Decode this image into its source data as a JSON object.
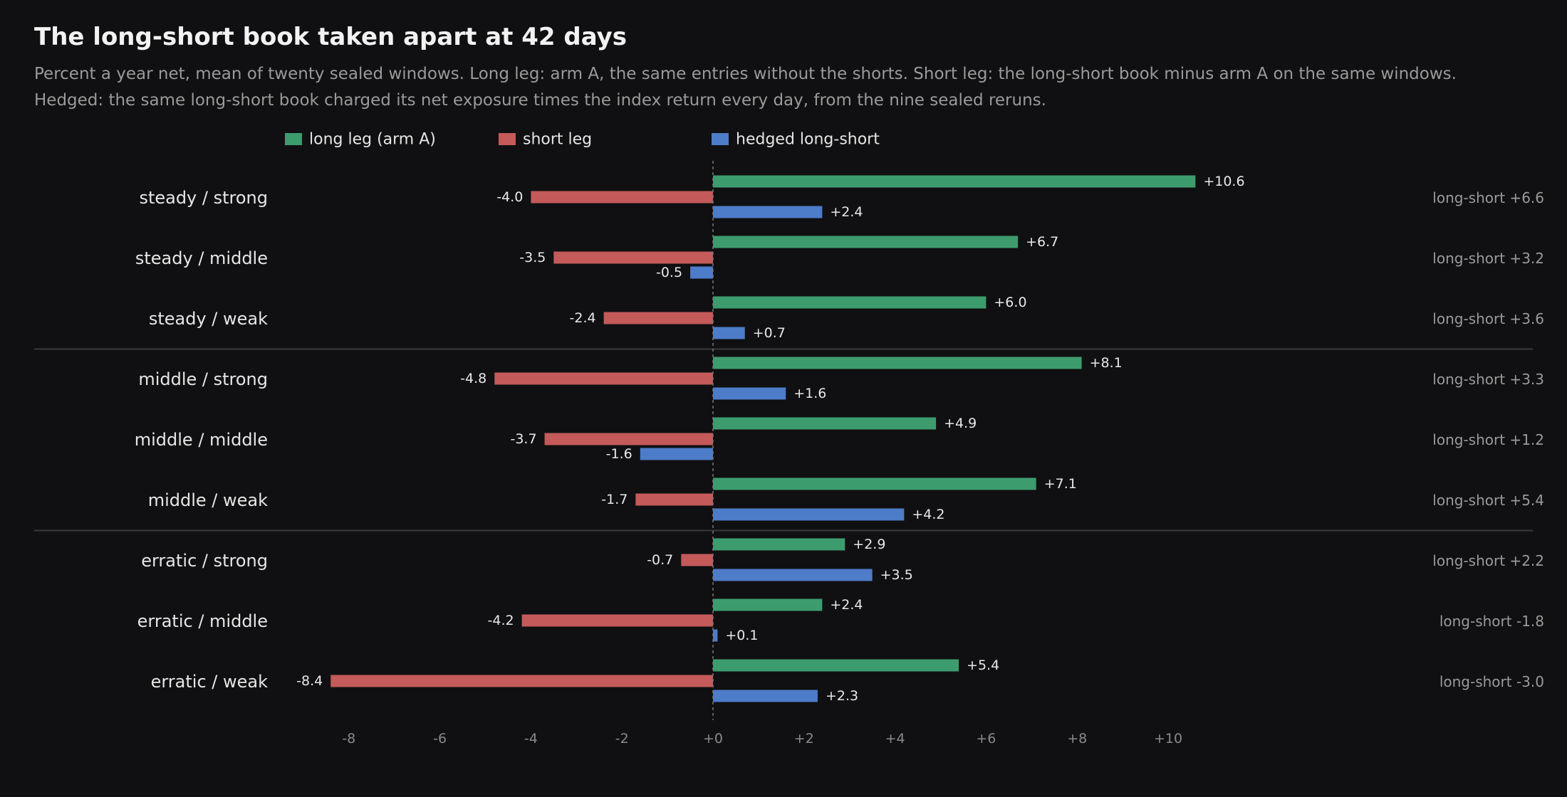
{
  "title": "The long-short book taken apart at 42 days",
  "subtitle_lines": [
    "Percent a year net, mean of twenty sealed windows. Long leg: arm A, the same entries without the shorts. Short leg: the long-short book minus arm A on the same windows.",
    "Hedged: the same long-short book charged its net exposure times the index return every day, from the nine sealed reruns."
  ],
  "chart_data": {
    "type": "bar",
    "orientation": "horizontal",
    "xlim": [
      -9,
      10.8
    ],
    "x_ticks": [
      -8,
      -6,
      -4,
      -2,
      0,
      2,
      4,
      6,
      8,
      10
    ],
    "x_tick_labels": [
      "-8",
      "-6",
      "-4",
      "-2",
      "+0",
      "+2",
      "+4",
      "+6",
      "+8",
      "+10"
    ],
    "legend_placement": "top",
    "grid": false,
    "categories": [
      "steady / strong",
      "steady / middle",
      "steady / weak",
      "middle / strong",
      "middle / middle",
      "middle / weak",
      "erratic / strong",
      "erratic / middle",
      "erratic / weak"
    ],
    "group_breaks_after": [
      2,
      5
    ],
    "series": [
      {
        "name": "long leg (arm A)",
        "color": "#3d9c6e",
        "values": [
          10.6,
          6.7,
          6.0,
          8.1,
          4.9,
          7.1,
          2.9,
          2.4,
          5.4
        ],
        "labels": [
          "+10.6",
          "+6.7",
          "+6.0",
          "+8.1",
          "+4.9",
          "+7.1",
          "+2.9",
          "+2.4",
          "+5.4"
        ]
      },
      {
        "name": "short leg",
        "color": "#c45a5a",
        "values": [
          -4.0,
          -3.5,
          -2.4,
          -4.8,
          -3.7,
          -1.7,
          -0.7,
          -4.2,
          -8.4
        ],
        "labels": [
          "-4.0",
          "-3.5",
          "-2.4",
          "-4.8",
          "-3.7",
          "-1.7",
          "-0.7",
          "-4.2",
          "-8.4"
        ]
      },
      {
        "name": "hedged long-short",
        "color": "#4d7cc8",
        "values": [
          2.4,
          -0.5,
          0.7,
          1.6,
          -1.6,
          4.2,
          3.5,
          0.1,
          2.3
        ],
        "labels": [
          "+2.4",
          "-0.5",
          "+0.7",
          "+1.6",
          "-1.6",
          "+4.2",
          "+3.5",
          "+0.1",
          "+2.3"
        ]
      }
    ],
    "right_annotations": [
      "long-short +6.6",
      "long-short +3.2",
      "long-short +3.6",
      "long-short +3.3",
      "long-short +1.2",
      "long-short +5.4",
      "long-short +2.2",
      "long-short -1.8",
      "long-short -3.0"
    ],
    "colors": {
      "background": "#101012",
      "text": "#e6e6e6",
      "muted": "#9a9a9a",
      "tick": "#8a8a8a",
      "separator": "#3a3a3e",
      "zero_line": "#777777"
    }
  }
}
